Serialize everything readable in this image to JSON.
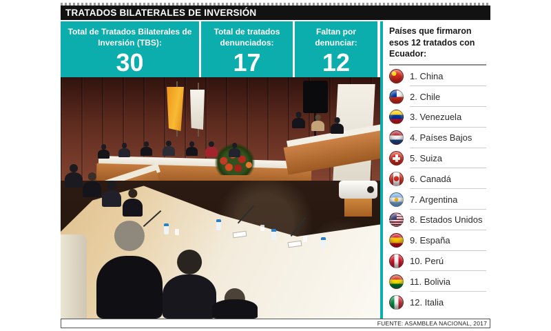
{
  "title_bar": {
    "title": "TRATADOS BILATERALES DE INVERSIÓN"
  },
  "stats": [
    {
      "label": "Total de Tratados Bilaterales de Inversión (TBS):",
      "value": "30"
    },
    {
      "label": "Total de tratados denunciados:",
      "value": "17"
    },
    {
      "label": "Faltan por denunciar:",
      "value": "12"
    }
  ],
  "sidebar": {
    "title": "Países que firmaron esos 12 tratados con Ecuador:",
    "items": [
      {
        "label": "1. China",
        "flag": "china"
      },
      {
        "label": "2. Chile",
        "flag": "chile"
      },
      {
        "label": "3. Venezuela",
        "flag": "venezuela"
      },
      {
        "label": "4. Países Bajos",
        "flag": "netherlands"
      },
      {
        "label": "5. Suiza",
        "flag": "switzerland"
      },
      {
        "label": "6. Canadá",
        "flag": "canada"
      },
      {
        "label": "7. Argentina",
        "flag": "argentina"
      },
      {
        "label": "8. Estados Unidos",
        "flag": "usa"
      },
      {
        "label": "9. España",
        "flag": "spain"
      },
      {
        "label": "10. Perú",
        "flag": "peru"
      },
      {
        "label": "11. Bolivia",
        "flag": "bolivia"
      },
      {
        "label": "12. Italia",
        "flag": "italy"
      }
    ]
  },
  "footer": {
    "source": "FUENTE: ASAMBLEA NACIONAL, 2017"
  },
  "colors": {
    "teal": "#0badad",
    "bar_black": "#121212"
  },
  "chart_data": {
    "type": "table",
    "title": "TRATADOS BILATERALES DE INVERSIÓN",
    "categories": [
      "Total de Tratados Bilaterales de Inversión (TBS)",
      "Total de tratados denunciados",
      "Faltan por denunciar"
    ],
    "values": [
      30,
      17,
      12
    ],
    "list_title": "Países que firmaron esos 12 tratados con Ecuador",
    "list_values": [
      "China",
      "Chile",
      "Venezuela",
      "Países Bajos",
      "Suiza",
      "Canadá",
      "Argentina",
      "Estados Unidos",
      "España",
      "Perú",
      "Bolivia",
      "Italia"
    ],
    "source": "FUENTE: ASAMBLEA NACIONAL, 2017"
  }
}
